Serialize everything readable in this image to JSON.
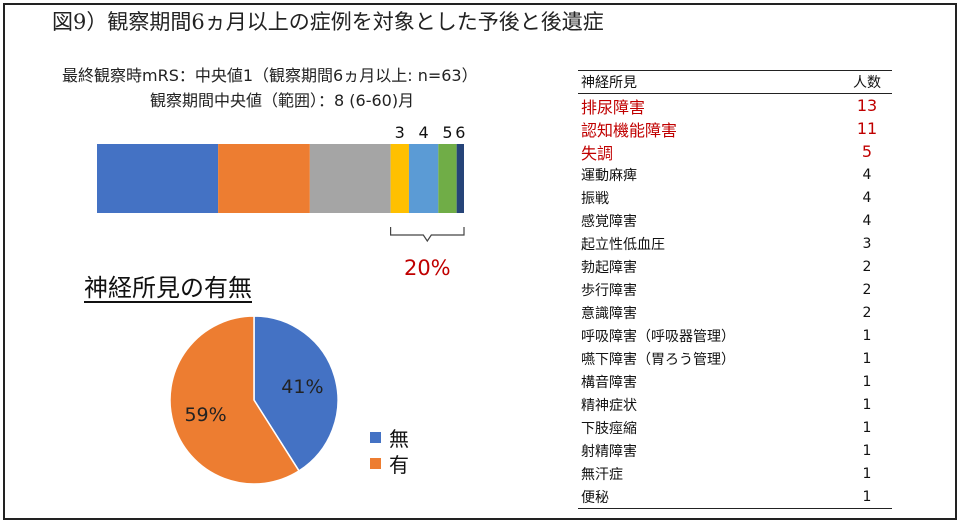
{
  "title": "図9）観察期間6ヵ月以上の症例を対象とした予後と後遺症",
  "subtitle_line1": "最終観察時mRS：中央値1（観察期間6ヵ月以上: n=63）",
  "subtitle_line2": "観察期間中央値（範囲）：8 (6-60)月",
  "pie_heading": "神経所見の有無",
  "table": {
    "header_finding": "神経所見",
    "header_count": "人数",
    "rows": [
      {
        "finding": "排尿障害",
        "count": "13",
        "highlight": true
      },
      {
        "finding": "認知機能障害",
        "count": "11",
        "highlight": true
      },
      {
        "finding": "失調",
        "count": "5",
        "highlight": true
      },
      {
        "finding": "運動麻痺",
        "count": "4",
        "highlight": false
      },
      {
        "finding": "振戦",
        "count": "4",
        "highlight": false
      },
      {
        "finding": "感覚障害",
        "count": "4",
        "highlight": false
      },
      {
        "finding": "起立性低血圧",
        "count": "3",
        "highlight": false
      },
      {
        "finding": "勃起障害",
        "count": "2",
        "highlight": false
      },
      {
        "finding": "歩行障害",
        "count": "2",
        "highlight": false
      },
      {
        "finding": "意識障害",
        "count": "2",
        "highlight": false
      },
      {
        "finding": "呼吸障害（呼吸器管理）",
        "count": "1",
        "highlight": false
      },
      {
        "finding": "嚥下障害（胃ろう管理）",
        "count": "1",
        "highlight": false
      },
      {
        "finding": "構音障害",
        "count": "1",
        "highlight": false
      },
      {
        "finding": "精神症状",
        "count": "1",
        "highlight": false
      },
      {
        "finding": "下肢痙縮",
        "count": "1",
        "highlight": false
      },
      {
        "finding": "射精障害",
        "count": "1",
        "highlight": false
      },
      {
        "finding": "無汗症",
        "count": "1",
        "highlight": false
      },
      {
        "finding": "便秘",
        "count": "1",
        "highlight": false
      }
    ]
  },
  "chart_data": [
    {
      "type": "bar",
      "orientation": "horizontal-stacked-100",
      "segments": [
        {
          "label": "",
          "value": 33,
          "color": "#4472c4"
        },
        {
          "label": "",
          "value": 25,
          "color": "#ed7d31"
        },
        {
          "label": "",
          "value": 22,
          "color": "#a5a5a5"
        },
        {
          "label": "3",
          "value": 5,
          "color": "#ffc000"
        },
        {
          "label": "4",
          "value": 8,
          "color": "#5b9bd5"
        },
        {
          "label": "5",
          "value": 5,
          "color": "#70ad47"
        },
        {
          "label": "6",
          "value": 2,
          "color": "#264478"
        }
      ],
      "bracket_annotation": "20%",
      "annotation_color": "#c00000"
    },
    {
      "type": "pie",
      "slices": [
        {
          "name": "無",
          "value": 41,
          "label": "41%",
          "color": "#4472c4"
        },
        {
          "name": "有",
          "value": 59,
          "label": "59%",
          "color": "#ed7d31"
        }
      ],
      "legend": [
        "無",
        "有"
      ],
      "legend_position": "right"
    }
  ]
}
